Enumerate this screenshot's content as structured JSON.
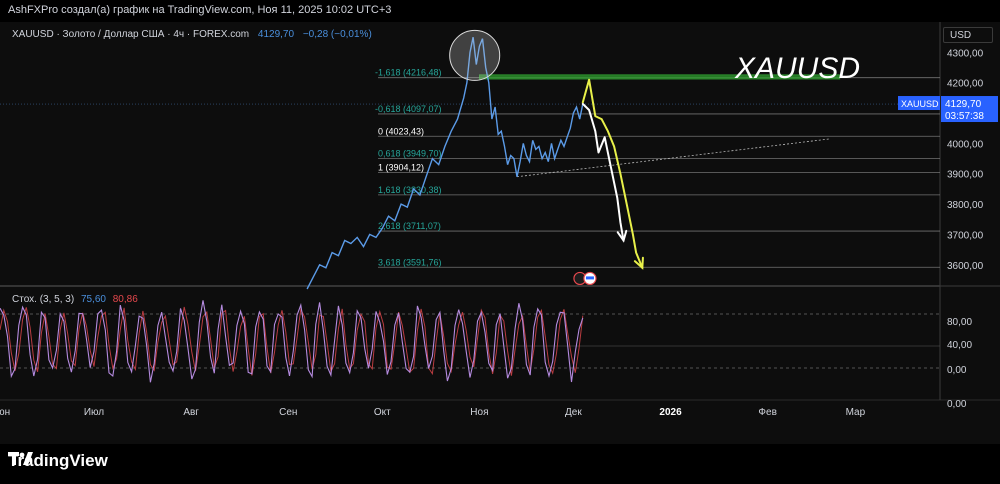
{
  "attribution": "AshFXPro создал(а) график на TradingView.com, Ноя 11, 2025 10:02 UTC+3",
  "brand": {
    "logo_text": "TradingView",
    "logo_icon": "tradingview-logo-icon"
  },
  "symbol_title": "XAUUSD",
  "legend": {
    "symbol": "XAUUSD · Золото / Доллар США · 4ч · FOREX.com",
    "price": "4129,70",
    "change": "−0,28 (−0,01%)"
  },
  "currency_button": "USD",
  "price_tag": {
    "symbol": "XAUUSD",
    "price": "4129,70",
    "countdown": "03:57:38"
  },
  "colors": {
    "price_line": "#5b9be8",
    "fib_line": "#8a8a8a",
    "fib_label": "#26a69a",
    "green_zone": "#2e9e2e",
    "yellow_arrow": "#e8f04a",
    "white_arrow": "#ffffff",
    "stoch_k": "#4a8fdc",
    "stoch_d": "#e5484d"
  },
  "chart_data": [
    {
      "type": "line",
      "panel": "price",
      "y_axis_ticks": [
        "4300,00",
        "4200,00",
        "4100,00",
        "4000,00",
        "3900,00",
        "3800,00",
        "3700,00",
        "3600,00"
      ],
      "y_tick_values": [
        4300,
        4200,
        4100,
        4000,
        3900,
        3800,
        3700,
        3600
      ],
      "ylim": [
        3530,
        4400
      ],
      "x_axis_ticks": [
        "Июн",
        "Июл",
        "Авг",
        "Сен",
        "Окт",
        "Ноя",
        "Дек",
        "2026",
        "Фев",
        "Мар"
      ],
      "x_range_days": [
        0,
        300
      ],
      "x_tick_days": [
        0,
        30,
        61,
        92,
        122,
        153,
        183,
        214,
        245,
        273
      ],
      "series": [
        {
          "values": [
            [
              98,
              3520
            ],
            [
              100,
              3560
            ],
            [
              102,
              3600
            ],
            [
              104,
              3590
            ],
            [
              106,
              3640
            ],
            [
              108,
              3630
            ],
            [
              110,
              3680
            ],
            [
              112,
              3670
            ],
            [
              114,
              3690
            ],
            [
              116,
              3660
            ],
            [
              118,
              3700
            ],
            [
              120,
              3690
            ],
            [
              122,
              3720
            ],
            [
              124,
              3760
            ],
            [
              126,
              3745
            ],
            [
              128,
              3800
            ],
            [
              130,
              3790
            ],
            [
              132,
              3850
            ],
            [
              134,
              3830
            ],
            [
              136,
              3890
            ],
            [
              138,
              3950
            ],
            [
              140,
              3930
            ],
            [
              142,
              3990
            ],
            [
              144,
              4040
            ],
            [
              146,
              4080
            ],
            [
              148,
              4150
            ],
            [
              149,
              4200
            ],
            [
              150,
              4300
            ],
            [
              151,
              4350
            ],
            [
              152,
              4260
            ],
            [
              153,
              4320
            ],
            [
              154,
              4345
            ],
            [
              155,
              4250
            ],
            [
              156,
              4200
            ],
            [
              157,
              4080
            ],
            [
              158,
              4120
            ],
            [
              159,
              4030
            ],
            [
              160,
              4040
            ],
            [
              161,
              3990
            ],
            [
              162,
              3930
            ],
            [
              163,
              3960
            ],
            [
              164,
              3950
            ],
            [
              165,
              3890
            ],
            [
              166,
              3940
            ],
            [
              167,
              4000
            ],
            [
              168,
              3960
            ],
            [
              169,
              3940
            ],
            [
              170,
              4010
            ],
            [
              171,
              3980
            ],
            [
              172,
              3990
            ],
            [
              173,
              3950
            ],
            [
              174,
              3970
            ],
            [
              175,
              3940
            ],
            [
              176,
              4000
            ],
            [
              177,
              3950
            ],
            [
              178,
              3980
            ],
            [
              179,
              4010
            ],
            [
              180,
              3990
            ],
            [
              181,
              4020
            ],
            [
              182,
              4050
            ],
            [
              183,
              4100
            ],
            [
              184,
              4120
            ],
            [
              185,
              4080
            ],
            [
              186,
              4130
            ]
          ]
        }
      ],
      "fib_levels": [
        {
          "label": "-1,618 (4216,48)",
          "value": 4216.48
        },
        {
          "label": "-0,618 (4097,07)",
          "value": 4097.07
        },
        {
          "label": "0 (4023,43)",
          "value": 4023.43
        },
        {
          "label": "0,618 (3949,70)",
          "value": 3949.7
        },
        {
          "label": "1 (3904,12)",
          "value": 3904.12
        },
        {
          "label": "1,618 (3830,38)",
          "value": 3830.38
        },
        {
          "label": "2,618 (3711,07)",
          "value": 3711.07
        },
        {
          "label": "3,618 (3591,76)",
          "value": 3591.76
        }
      ],
      "green_zone": {
        "from_day": 153,
        "to_day": 268,
        "from_value": 4212,
        "to_value": 4226
      },
      "trendline": {
        "from": [
          165,
          3890
        ],
        "to": [
          265,
          4015
        ]
      },
      "highlight_circle": {
        "day": 151.5,
        "value": 4290
      },
      "projection_yellow": [
        [
          186,
          4135
        ],
        [
          188,
          4210
        ],
        [
          190,
          4090
        ],
        [
          192,
          4080
        ],
        [
          194,
          4040
        ],
        [
          196,
          3990
        ],
        [
          198,
          3900
        ],
        [
          200,
          3800
        ],
        [
          202,
          3700
        ],
        [
          203,
          3640
        ],
        [
          205,
          3590
        ]
      ],
      "projection_white": [
        [
          186,
          4130
        ],
        [
          188,
          4110
        ],
        [
          190,
          4040
        ],
        [
          191,
          3970
        ],
        [
          193,
          4020
        ],
        [
          195,
          3920
        ],
        [
          197,
          3820
        ],
        [
          198,
          3740
        ],
        [
          199,
          3680
        ]
      ]
    },
    {
      "type": "line",
      "panel": "stochastic",
      "legend_label": "Стох. (3, 5, 3)",
      "k_value": "75,60",
      "d_value": "80,86",
      "y_axis_ticks": [
        "80,00",
        "40,00",
        "0,00",
        "0,00"
      ],
      "levels": [
        80,
        20
      ]
    }
  ]
}
